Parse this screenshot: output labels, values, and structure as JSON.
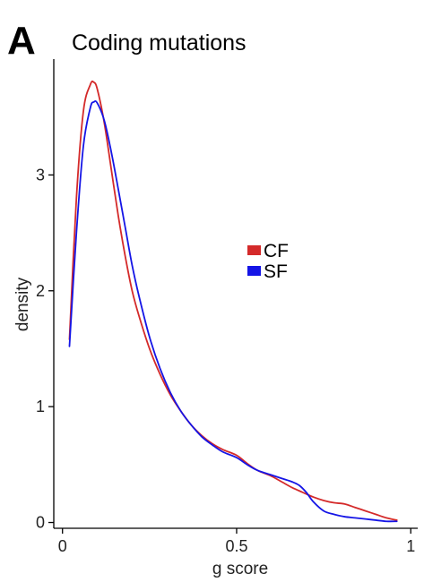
{
  "panel_letter": "A",
  "chart_data": {
    "type": "line",
    "title": "Coding mutations",
    "xlabel": "g score",
    "ylabel": "density",
    "xlim": [
      -0.025,
      1.02
    ],
    "ylim": [
      -0.05,
      4.0
    ],
    "xticks": [
      0,
      0.5,
      1
    ],
    "xtick_labels": [
      "0",
      "0.5",
      "1"
    ],
    "yticks": [
      0,
      1,
      2,
      3
    ],
    "ytick_labels": [
      "0",
      "1",
      "2",
      "3"
    ],
    "grid": false,
    "legend_position": "center-right",
    "series": [
      {
        "name": "CF",
        "color": "#d42a2a",
        "x": [
          0.02,
          0.04,
          0.06,
          0.08,
          0.09,
          0.1,
          0.12,
          0.14,
          0.16,
          0.18,
          0.2,
          0.22,
          0.25,
          0.28,
          0.31,
          0.34,
          0.37,
          0.4,
          0.43,
          0.46,
          0.5,
          0.53,
          0.56,
          0.6,
          0.63,
          0.66,
          0.69,
          0.72,
          0.75,
          0.78,
          0.81,
          0.84,
          0.87,
          0.9,
          0.93,
          0.96
        ],
        "y": [
          1.58,
          2.8,
          3.55,
          3.78,
          3.8,
          3.74,
          3.45,
          3.05,
          2.65,
          2.3,
          2.0,
          1.78,
          1.5,
          1.28,
          1.1,
          0.96,
          0.84,
          0.75,
          0.68,
          0.63,
          0.58,
          0.51,
          0.45,
          0.4,
          0.35,
          0.3,
          0.26,
          0.22,
          0.19,
          0.17,
          0.16,
          0.13,
          0.1,
          0.07,
          0.04,
          0.02
        ]
      },
      {
        "name": "SF",
        "color": "#1515e6",
        "x": [
          0.02,
          0.04,
          0.06,
          0.08,
          0.09,
          0.1,
          0.12,
          0.14,
          0.16,
          0.18,
          0.2,
          0.22,
          0.25,
          0.28,
          0.31,
          0.34,
          0.37,
          0.4,
          0.43,
          0.46,
          0.5,
          0.53,
          0.56,
          0.6,
          0.63,
          0.66,
          0.68,
          0.7,
          0.72,
          0.75,
          0.78,
          0.81,
          0.84,
          0.87,
          0.9,
          0.93,
          0.96
        ],
        "y": [
          1.52,
          2.5,
          3.25,
          3.58,
          3.63,
          3.62,
          3.47,
          3.2,
          2.88,
          2.55,
          2.22,
          1.95,
          1.6,
          1.33,
          1.12,
          0.96,
          0.84,
          0.74,
          0.67,
          0.61,
          0.56,
          0.5,
          0.45,
          0.41,
          0.38,
          0.35,
          0.32,
          0.26,
          0.18,
          0.1,
          0.07,
          0.05,
          0.04,
          0.03,
          0.02,
          0.01,
          0.01
        ]
      }
    ]
  }
}
